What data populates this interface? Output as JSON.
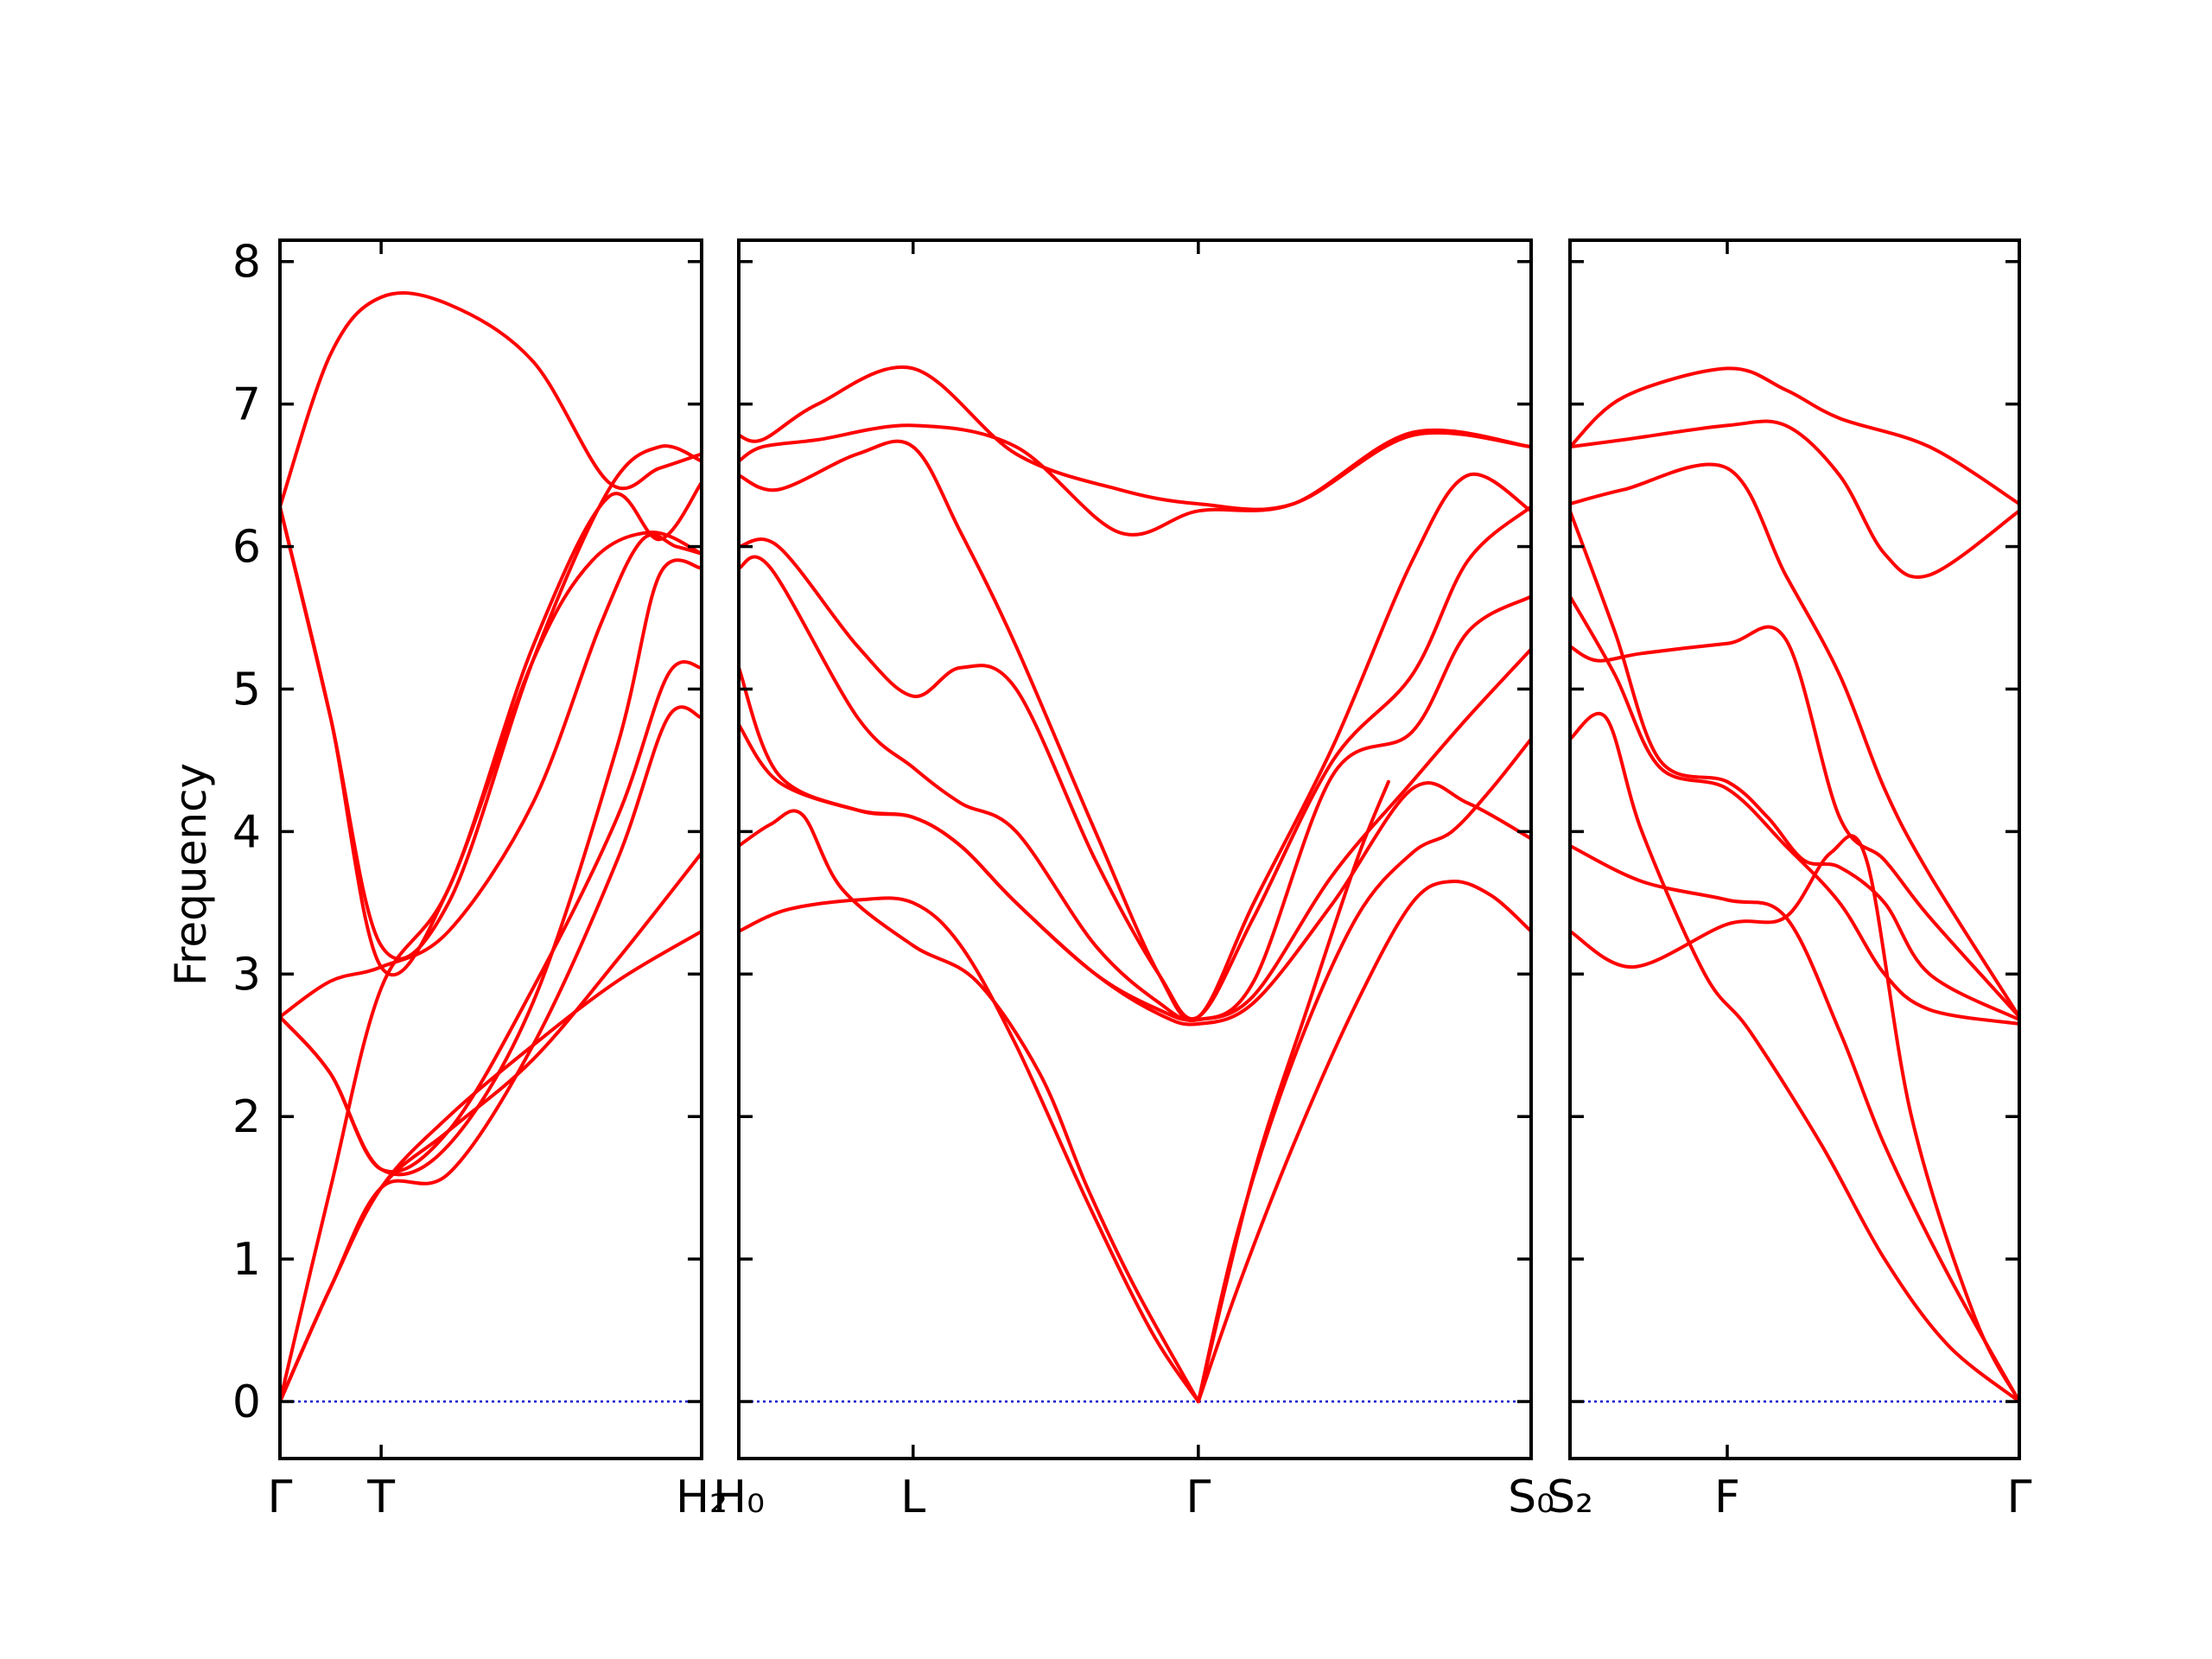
{
  "chart_data": {
    "type": "line",
    "ylabel": "Frequency",
    "ylim": [
      -0.4,
      8.15
    ],
    "yticks": [
      0,
      1,
      2,
      3,
      4,
      5,
      6,
      7,
      8
    ],
    "band_color": "#ff0000",
    "zero_line_color": "#0000cc",
    "panels": [
      {
        "xlim": [
          0,
          5
        ],
        "xticks": [
          {
            "x": 0,
            "label": "Γ"
          },
          {
            "x": 1.2,
            "label": "T"
          },
          {
            "x": 5,
            "label": "H₂"
          }
        ],
        "series": [
          {
            "x": [
              0,
              0.6,
              1.2,
              2.0,
              3.0,
              3.9,
              4.5,
              5
            ],
            "values": [
              6.28,
              7.35,
              7.75,
              7.7,
              7.3,
              6.45,
              6.55,
              6.65
            ]
          },
          {
            "x": [
              0,
              0.6,
              1.2,
              2.0,
              3.0,
              3.9,
              4.5,
              5
            ],
            "values": [
              6.28,
              4.8,
              3.2,
              3.5,
              5.2,
              6.4,
              6.7,
              6.6
            ]
          },
          {
            "x": [
              0,
              0.6,
              1.2,
              2.0,
              3.0,
              3.8,
              4.3,
              4.7,
              5
            ],
            "values": [
              2.7,
              2.95,
              3.05,
              3.3,
              4.2,
              5.45,
              6.05,
              6.0,
              5.95
            ]
          },
          {
            "x": [
              0,
              0.6,
              1.2,
              2.0,
              3.0,
              3.9,
              4.5,
              5
            ],
            "values": [
              6.28,
              4.8,
              3.05,
              3.6,
              5.3,
              6.35,
              6.05,
              6.45
            ]
          },
          {
            "x": [
              0,
              0.6,
              1.2,
              2.0,
              3.0,
              3.7,
              4.4,
              5
            ],
            "values": [
              0,
              1.5,
              2.9,
              3.6,
              5.2,
              5.9,
              6.1,
              5.95
            ]
          },
          {
            "x": [
              0,
              0.6,
              1.2,
              2.0,
              3.0,
              4.0,
              4.5,
              5
            ],
            "values": [
              2.7,
              2.3,
              1.63,
              1.8,
              2.8,
              4.6,
              5.8,
              5.85
            ]
          },
          {
            "x": [
              0,
              0.6,
              1.2,
              2.0,
              3.0,
              4.0,
              4.6,
              5
            ],
            "values": [
              2.7,
              2.3,
              1.63,
              1.9,
              2.9,
              4.1,
              5.1,
              5.15
            ]
          },
          {
            "x": [
              0,
              0.6,
              1.2,
              2.0,
              3.0,
              4.0,
              4.6,
              5
            ],
            "values": [
              0,
              0.8,
              1.5,
              1.6,
              2.5,
              3.8,
              4.8,
              4.8
            ]
          },
          {
            "x": [
              0,
              0.6,
              1.2,
              2.0,
              3.0,
              4.0,
              5
            ],
            "values": [
              0,
              0.8,
              1.5,
              1.9,
              2.4,
              3.1,
              3.85
            ]
          },
          {
            "x": [
              0,
              0.6,
              1.2,
              2.0,
              3.0,
              4.0,
              5
            ],
            "values": [
              0,
              0.8,
              1.5,
              2.0,
              2.5,
              2.95,
              3.3
            ]
          }
        ]
      },
      {
        "xlim": [
          0,
          10
        ],
        "xticks": [
          {
            "x": 0,
            "label": "H₀"
          },
          {
            "x": 2.2,
            "label": "L"
          },
          {
            "x": 5.8,
            "label": "Γ"
          },
          {
            "x": 10,
            "label": "S₀"
          }
        ],
        "series": [
          {
            "x": [
              0,
              0.3,
              1.0,
              2.2,
              3.5,
              4.8,
              5.8,
              7.0,
              8.5,
              10
            ],
            "values": [
              6.78,
              6.75,
              7.0,
              7.25,
              6.65,
              6.4,
              6.3,
              6.3,
              6.78,
              6.7
            ]
          },
          {
            "x": [
              0,
              0.3,
              1.0,
              2.2,
              3.5,
              4.8,
              5.8,
              7.0,
              8.5,
              10
            ],
            "values": [
              6.6,
              6.7,
              6.75,
              6.85,
              6.7,
              6.1,
              6.25,
              6.3,
              6.8,
              6.7
            ]
          },
          {
            "x": [
              0,
              0.5,
              1.5,
              2.2,
              2.8,
              3.5,
              4.5,
              5.3,
              5.8,
              6.5,
              7.5,
              8.5,
              9.2,
              10
            ],
            "values": [
              6.5,
              6.4,
              6.65,
              6.7,
              6.1,
              5.3,
              4.0,
              3.0,
              2.7,
              3.5,
              4.6,
              5.9,
              6.5,
              6.25
            ]
          },
          {
            "x": [
              0,
              0.5,
              1.5,
              2.2,
              2.8,
              3.5,
              4.5,
              5.3,
              5.8,
              6.5,
              7.5,
              8.5,
              9.2,
              10
            ],
            "values": [
              6.0,
              6.0,
              5.3,
              4.95,
              5.15,
              5.0,
              3.8,
              3.0,
              2.7,
              3.4,
              4.5,
              5.1,
              5.9,
              6.28
            ]
          },
          {
            "x": [
              0,
              0.4,
              1.5,
              2.2,
              2.8,
              3.5,
              4.5,
              5.3,
              5.8,
              6.5,
              7.5,
              8.5,
              9.2,
              10
            ],
            "values": [
              5.85,
              5.85,
              4.8,
              4.45,
              4.2,
              4.0,
              3.2,
              2.8,
              2.68,
              2.95,
              4.4,
              4.7,
              5.4,
              5.65
            ]
          },
          {
            "x": [
              0,
              0.5,
              1.5,
              2.2,
              2.8,
              3.5,
              4.5,
              5.3,
              5.8,
              6.5,
              7.5,
              8.5,
              9.2,
              10
            ],
            "values": [
              5.15,
              4.4,
              4.15,
              4.1,
              3.9,
              3.5,
              3.0,
              2.75,
              2.68,
              2.85,
              3.7,
              4.35,
              4.8,
              5.28
            ]
          },
          {
            "x": [
              0,
              0.5,
              1.5,
              2.2,
              2.8,
              3.5,
              4.5,
              5.3,
              5.8,
              6.5,
              7.5,
              8.5,
              9.2,
              10
            ],
            "values": [
              4.75,
              4.35,
              4.15,
              4.1,
              3.9,
              3.5,
              3.0,
              2.72,
              2.65,
              2.8,
              3.5,
              4.3,
              4.2,
              3.95
            ]
          },
          {
            "x": [
              0,
              0.4,
              0.8,
              1.3,
              2.2,
              3.0,
              3.8,
              4.4,
              5.0,
              5.8
            ],
            "values": [
              3.9,
              4.05,
              4.12,
              3.6,
              3.2,
              2.95,
              2.3,
              1.5,
              0.8,
              0
            ]
          },
          {
            "x": [
              0,
              0.6,
              1.5,
              2.2,
              2.8,
              3.5,
              4.4,
              5.2,
              5.8
            ],
            "values": [
              3.3,
              3.45,
              3.52,
              3.5,
              3.2,
              2.5,
              1.4,
              0.5,
              0
            ]
          },
          {
            "x": [
              5.8,
              6.3,
              7.0,
              7.8,
              8.5,
              9.0,
              9.5,
              10
            ],
            "values": [
              0,
              1.2,
              2.4,
              3.4,
              3.85,
              4.0,
              4.3,
              4.65
            ]
          },
          {
            "x": [
              5.8,
              6.3,
              7.0,
              7.8,
              8.5,
              9.0,
              9.5,
              10
            ],
            "values": [
              0,
              0.8,
              1.8,
              2.8,
              3.5,
              3.65,
              3.55,
              3.3
            ]
          },
          {
            "x": [
              5.8,
              6.5,
              7.2,
              7.8,
              8.2
            ],
            "values": [
              0,
              1.6,
              2.8,
              3.8,
              4.35
            ]
          }
        ]
      },
      {
        "xlim": [
          0,
          5
        ],
        "xticks": [
          {
            "x": 0,
            "label": "S₂"
          },
          {
            "x": 1.75,
            "label": "F"
          },
          {
            "x": 5,
            "label": "Γ"
          }
        ],
        "series": [
          {
            "x": [
              0,
              0.6,
              1.75,
              2.4,
              3.0,
              4.0,
              5
            ],
            "values": [
              6.7,
              7.05,
              7.25,
              7.1,
              6.9,
              6.7,
              6.3
            ]
          },
          {
            "x": [
              0,
              0.6,
              1.75,
              2.4,
              3.0,
              3.5,
              4.0,
              5
            ],
            "values": [
              6.7,
              6.75,
              6.85,
              6.85,
              6.5,
              5.95,
              5.8,
              6.25
            ]
          },
          {
            "x": [
              0,
              0.6,
              1.75,
              2.4,
              3.0,
              3.5,
              4.0,
              5
            ],
            "values": [
              6.3,
              6.4,
              6.55,
              5.8,
              5.1,
              4.3,
              3.7,
              2.7
            ]
          },
          {
            "x": [
              0,
              0.3,
              0.8,
              1.75,
              2.4,
              3.0,
              3.5,
              4.0,
              5
            ],
            "values": [
              5.3,
              5.2,
              5.25,
              5.32,
              5.35,
              4.1,
              3.8,
              3.4,
              2.7
            ]
          },
          {
            "x": [
              0,
              0.5,
              1.0,
              1.75,
              2.4,
              3.0,
              3.5,
              4.0,
              5
            ],
            "values": [
              5.65,
              5.1,
              4.45,
              4.3,
              3.9,
              3.5,
              3.0,
              2.75,
              2.65
            ]
          },
          {
            "x": [
              0,
              0.5,
              1.0,
              1.75,
              2.2,
              2.6,
              3.0,
              3.5,
              4.0,
              5
            ],
            "values": [
              6.25,
              5.4,
              4.5,
              4.35,
              4.1,
              3.8,
              3.75,
              3.5,
              3.0,
              2.68
            ]
          },
          {
            "x": [
              0,
              0.4,
              0.8,
              1.5,
              2.0,
              2.8,
              3.5,
              4.2,
              5
            ],
            "values": [
              4.65,
              4.8,
              4.0,
              3.0,
              2.6,
              1.8,
              1.0,
              0.4,
              0
            ]
          },
          {
            "x": [
              0,
              0.8,
              1.75,
              2.4,
              3.0,
              3.5,
              4.2,
              5
            ],
            "values": [
              3.9,
              3.65,
              3.52,
              3.4,
              2.6,
              1.8,
              0.9,
              0
            ]
          },
          {
            "x": [
              0,
              0.7,
              1.75,
              2.4,
              2.9,
              3.3,
              3.8,
              4.5,
              5
            ],
            "values": [
              3.3,
              3.05,
              3.35,
              3.4,
              3.85,
              3.8,
              2.0,
              0.6,
              0
            ]
          }
        ]
      }
    ]
  }
}
